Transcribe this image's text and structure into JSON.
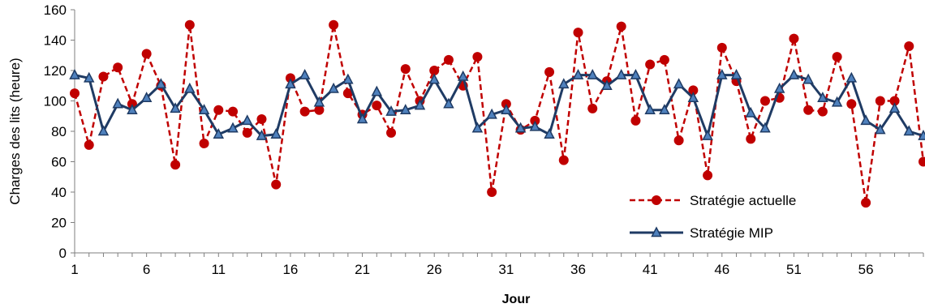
{
  "chart_data": {
    "type": "line",
    "xlabel": "Jour",
    "ylabel": "Charges  des lits (heure)",
    "ylim": [
      0,
      160
    ],
    "yticks": [
      0,
      20,
      40,
      60,
      80,
      100,
      120,
      140,
      160
    ],
    "xlim": [
      1,
      60
    ],
    "xticks": [
      1,
      6,
      11,
      16,
      21,
      26,
      31,
      36,
      41,
      46,
      51,
      56
    ],
    "grid": false,
    "legend_position": "bottom-right",
    "x": [
      1,
      2,
      3,
      4,
      5,
      6,
      7,
      8,
      9,
      10,
      11,
      12,
      13,
      14,
      15,
      16,
      17,
      18,
      19,
      20,
      21,
      22,
      23,
      24,
      25,
      26,
      27,
      28,
      29,
      30,
      31,
      32,
      33,
      34,
      35,
      36,
      37,
      38,
      39,
      40,
      41,
      42,
      43,
      44,
      45,
      46,
      47,
      48,
      49,
      50,
      51,
      52,
      53,
      54,
      55,
      56,
      57,
      58,
      59,
      60
    ],
    "series": [
      {
        "name": "Stratégie actuelle",
        "color": "#c00000",
        "line_style": "dashed",
        "marker": "circle",
        "values": [
          105,
          71,
          116,
          122,
          98,
          131,
          110,
          58,
          150,
          72,
          94,
          93,
          79,
          88,
          45,
          115,
          93,
          94,
          150,
          105,
          91,
          97,
          79,
          121,
          100,
          120,
          127,
          110,
          129,
          40,
          98,
          81,
          87,
          119,
          61,
          145,
          95,
          113,
          149,
          87,
          124,
          127,
          74,
          107,
          51,
          135,
          113,
          75,
          100,
          102,
          141,
          94,
          93,
          129,
          98,
          33,
          100,
          100,
          136,
          60
        ]
      },
      {
        "name": "Stratégie MIP",
        "color": "#1f3b64",
        "line_style": "solid",
        "marker": "triangle",
        "values": [
          117,
          115,
          80,
          98,
          94,
          102,
          111,
          95,
          108,
          94,
          78,
          82,
          87,
          77,
          78,
          111,
          117,
          99,
          108,
          114,
          88,
          106,
          93,
          94,
          97,
          114,
          98,
          116,
          82,
          91,
          94,
          82,
          83,
          78,
          111,
          117,
          117,
          110,
          117,
          117,
          94,
          94,
          111,
          102,
          77,
          117,
          117,
          92,
          82,
          108,
          117,
          114,
          102,
          99,
          115,
          87,
          81,
          95,
          80,
          77
        ]
      }
    ]
  }
}
